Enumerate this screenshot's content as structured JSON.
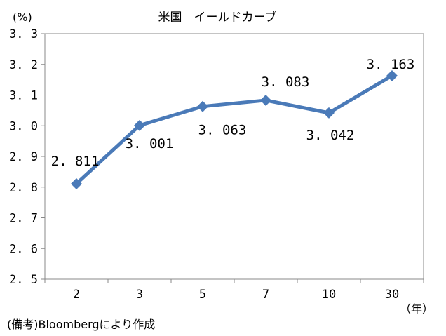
{
  "chart_data": {
    "type": "line",
    "title": "米国　イールドカーブ",
    "ylabel": "(%)",
    "xlabel": "（年）",
    "source_note": "(備考)Bloombergにより作成",
    "categories": [
      "2",
      "3",
      "5",
      "7",
      "10",
      "30"
    ],
    "series": [
      {
        "values": [
          2.811,
          3.001,
          3.063,
          3.083,
          3.042,
          3.163
        ],
        "data_labels": [
          "2.811",
          "3.001",
          "3.063",
          "3.083",
          "3.042",
          "3.163"
        ],
        "color": "#4a7ab8",
        "marker": "diamond"
      }
    ],
    "yticks": [
      "2.5",
      "2.6",
      "2.7",
      "2.8",
      "2.9",
      "3.0",
      "3.1",
      "3.2",
      "3.3"
    ],
    "ylim": [
      2.5,
      3.3
    ],
    "grid": false,
    "legend": "none"
  }
}
